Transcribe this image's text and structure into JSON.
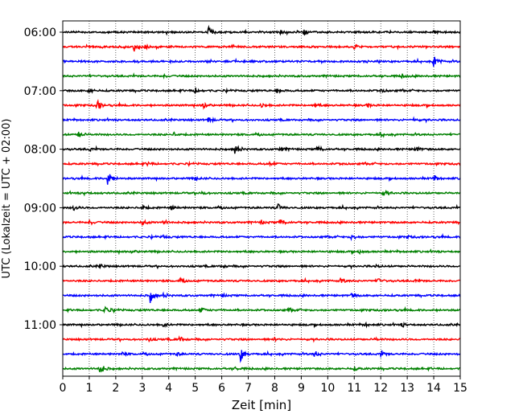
{
  "chart_data": {
    "type": "line",
    "xlabel": "Zeit  [min]",
    "ylabel": "UTC (Lokalzeit = UTC + 02:00)",
    "xlim": [
      0,
      15
    ],
    "x_ticks": [
      0,
      1,
      2,
      3,
      4,
      5,
      6,
      7,
      8,
      9,
      10,
      11,
      12,
      13,
      14,
      15
    ],
    "x_tick_labels": [
      "0",
      "1",
      "2",
      "3",
      "4",
      "5",
      "6",
      "7",
      "8",
      "9",
      "10",
      "11",
      "12",
      "13",
      "14",
      "15"
    ],
    "y_tick_labels": [
      "06:00",
      "07:00",
      "08:00",
      "09:00",
      "10:00",
      "11:00"
    ],
    "y_tick_rows": [
      0,
      4,
      8,
      12,
      16,
      20
    ],
    "grid": "x-dotted",
    "row_minutes": 15,
    "colors": [
      "#000000",
      "#ff0000",
      "#0000ff",
      "#008000"
    ],
    "rows": [
      {
        "start": "06:00",
        "events": [
          [
            5.5,
            1.0
          ],
          [
            9.1,
            0.6
          ],
          [
            8.2,
            0.35
          ],
          [
            14.0,
            0.4
          ]
        ]
      },
      {
        "start": "06:15",
        "events": [
          [
            2.7,
            1.4
          ],
          [
            3.1,
            0.45
          ],
          [
            11.0,
            0.4
          ]
        ]
      },
      {
        "start": "06:30",
        "events": [
          [
            14.0,
            1.5
          ],
          [
            4.0,
            0.25
          ],
          [
            11.2,
            0.2
          ]
        ]
      },
      {
        "start": "06:45",
        "events": [
          [
            12.8,
            0.35
          ],
          [
            3.8,
            0.3
          ]
        ]
      },
      {
        "start": "07:00",
        "events": [
          [
            1.0,
            0.6
          ],
          [
            5.0,
            0.6
          ],
          [
            8.1,
            0.55
          ],
          [
            12.0,
            0.5
          ]
        ]
      },
      {
        "start": "07:15",
        "events": [
          [
            1.3,
            1.0
          ],
          [
            5.3,
            0.7
          ],
          [
            7.5,
            0.5
          ],
          [
            9.5,
            0.45
          ],
          [
            11.5,
            0.4
          ]
        ]
      },
      {
        "start": "07:30",
        "events": [
          [
            5.5,
            0.7
          ],
          [
            13.2,
            0.35
          ]
        ]
      },
      {
        "start": "07:45",
        "events": [
          [
            0.6,
            0.8
          ],
          [
            4.2,
            0.3
          ],
          [
            12.0,
            0.3
          ]
        ]
      },
      {
        "start": "08:00",
        "events": [
          [
            6.5,
            1.2
          ],
          [
            9.6,
            0.8
          ],
          [
            13.3,
            0.7
          ],
          [
            8.2,
            0.5
          ],
          [
            1.0,
            0.4
          ]
        ]
      },
      {
        "start": "08:15",
        "events": [
          [
            3.2,
            0.35
          ],
          [
            7.8,
            0.35
          ],
          [
            10.5,
            0.25
          ]
        ]
      },
      {
        "start": "08:30",
        "events": [
          [
            1.7,
            2.0
          ],
          [
            14.0,
            0.6
          ],
          [
            5.0,
            0.3
          ]
        ]
      },
      {
        "start": "08:45",
        "events": [
          [
            12.1,
            0.6
          ],
          [
            5.2,
            0.45
          ],
          [
            0.8,
            0.3
          ]
        ]
      },
      {
        "start": "09:00",
        "events": [
          [
            0.4,
            0.6
          ],
          [
            3.0,
            0.5
          ],
          [
            4.1,
            0.4
          ],
          [
            8.1,
            0.9
          ]
        ]
      },
      {
        "start": "09:15",
        "events": [
          [
            1.0,
            0.6
          ],
          [
            3.0,
            0.6
          ],
          [
            3.8,
            0.5
          ],
          [
            8.2,
            0.9
          ],
          [
            7.5,
            0.35
          ]
        ]
      },
      {
        "start": "09:30",
        "events": [
          [
            10.9,
            0.6
          ],
          [
            3.8,
            0.3
          ],
          [
            13.0,
            0.3
          ]
        ]
      },
      {
        "start": "09:45",
        "events": [
          [
            2.6,
            0.3
          ],
          [
            11.2,
            0.35
          ]
        ]
      },
      {
        "start": "10:00",
        "events": [
          [
            1.4,
            0.5
          ],
          [
            6.0,
            0.3
          ],
          [
            11.8,
            0.3
          ]
        ]
      },
      {
        "start": "10:15",
        "events": [
          [
            4.4,
            0.35
          ],
          [
            10.5,
            0.5
          ],
          [
            11.9,
            0.45
          ],
          [
            13.3,
            0.3
          ]
        ]
      },
      {
        "start": "10:30",
        "events": [
          [
            3.3,
            1.4
          ],
          [
            3.8,
            0.4
          ],
          [
            10.9,
            0.5
          ],
          [
            6.0,
            0.3
          ]
        ]
      },
      {
        "start": "10:45",
        "events": [
          [
            1.6,
            1.0
          ],
          [
            5.2,
            0.6
          ],
          [
            8.5,
            0.3
          ]
        ]
      },
      {
        "start": "11:00",
        "events": [
          [
            3.8,
            0.4
          ],
          [
            11.4,
            0.35
          ],
          [
            12.8,
            0.45
          ]
        ]
      },
      {
        "start": "11:15",
        "events": [
          [
            3.2,
            0.5
          ],
          [
            4.4,
            0.6
          ],
          [
            8.0,
            0.3
          ],
          [
            11.8,
            0.25
          ]
        ]
      },
      {
        "start": "11:30",
        "events": [
          [
            6.7,
            1.6
          ],
          [
            9.5,
            0.8
          ],
          [
            12.0,
            0.7
          ],
          [
            2.2,
            0.4
          ],
          [
            4.3,
            0.3
          ]
        ]
      },
      {
        "start": "11:45",
        "events": [
          [
            1.4,
            1.3
          ],
          [
            6.5,
            0.3
          ],
          [
            11.0,
            0.3
          ]
        ]
      }
    ]
  }
}
